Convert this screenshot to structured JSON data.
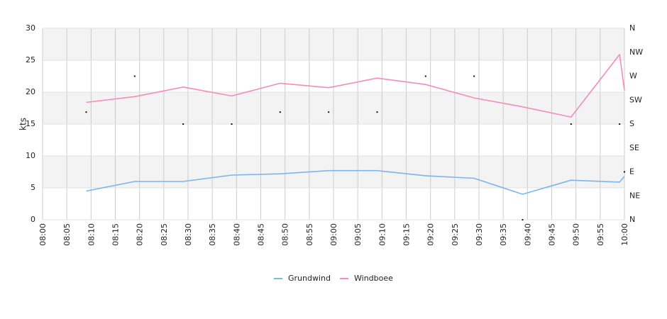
{
  "chart_data": {
    "type": "line",
    "xlabel": "",
    "ylabel": "kts",
    "ylim": [
      0,
      30
    ],
    "y_ticks": [
      "0",
      "5",
      "10",
      "15",
      "20",
      "25",
      "30"
    ],
    "x_ticks": [
      "08:00",
      "08:05",
      "08:10",
      "08:15",
      "08:20",
      "08:25",
      "08:30",
      "08:35",
      "08:40",
      "08:45",
      "08:50",
      "08:55",
      "09:00",
      "09:05",
      "09:10",
      "09:15",
      "09:20",
      "09:25",
      "09:30",
      "09:35",
      "09:40",
      "09:45",
      "09:50",
      "09:55",
      "10:00"
    ],
    "right_axis_ticks": [
      "N",
      "NE",
      "E",
      "SE",
      "S",
      "SW",
      "W",
      "NW",
      "N"
    ],
    "legend_position": "bottom",
    "series": [
      {
        "name": "Grundwind",
        "color": "#7cb5ec",
        "x": [
          "08:09",
          "08:19",
          "08:29",
          "08:39",
          "08:49",
          "08:59",
          "09:09",
          "09:19",
          "09:29",
          "09:39",
          "09:49",
          "09:59",
          "10:00"
        ],
        "values": [
          4.5,
          6.0,
          6.0,
          7.0,
          7.2,
          7.7,
          7.7,
          6.9,
          6.5,
          4.0,
          6.2,
          5.9,
          6.8
        ]
      },
      {
        "name": "Windboee",
        "color": "#f28cbf",
        "x": [
          "08:09",
          "08:19",
          "08:29",
          "08:39",
          "08:49",
          "08:59",
          "09:09",
          "09:19",
          "09:29",
          "09:39",
          "09:49",
          "09:59",
          "10:00"
        ],
        "values": [
          18.4,
          19.3,
          20.8,
          19.4,
          21.4,
          20.7,
          22.2,
          21.2,
          19.1,
          17.7,
          16.1,
          25.9,
          20.3
        ]
      }
    ],
    "direction_markers": {
      "x": [
        "08:09",
        "08:19",
        "08:29",
        "08:39",
        "08:49",
        "08:59",
        "09:09",
        "09:19",
        "09:29",
        "09:39",
        "09:49",
        "09:59",
        "10:00"
      ],
      "direction": [
        "SSW",
        "W",
        "S",
        "S",
        "SSW",
        "SSW",
        "SSW",
        "W",
        "W",
        "N",
        "S",
        "S",
        "E"
      ]
    },
    "grid": true
  }
}
